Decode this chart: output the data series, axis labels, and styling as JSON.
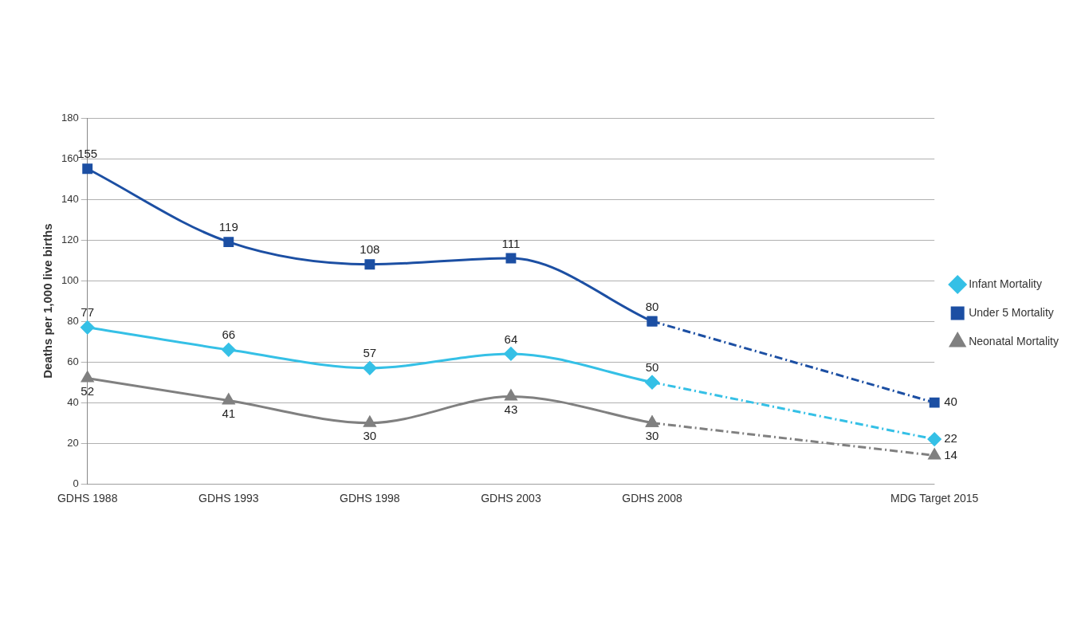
{
  "chart_data": {
    "type": "line",
    "ylabel": "Deaths per 1,000 live births",
    "categories": [
      "GDHS 1988",
      "GDHS 1993",
      "GDHS 1998",
      "GDHS 2003",
      "GDHS 2008",
      null,
      "MDG Target 2015"
    ],
    "ylim": [
      0,
      180
    ],
    "yticks": [
      0,
      20,
      40,
      60,
      80,
      100,
      120,
      140,
      160,
      180
    ],
    "grid": "y",
    "legend": "right",
    "series": [
      {
        "name": "Infant Mortality",
        "color": "#35c0e6",
        "marker": "diamond",
        "line_style": "solid",
        "values": [
          77,
          66,
          57,
          64,
          50,
          null,
          null
        ],
        "value_labels": [
          "77",
          "66",
          "57",
          "64",
          "50",
          null,
          null
        ]
      },
      {
        "name": "Under 5 Mortality",
        "color": "#1c4fa3",
        "marker": "square",
        "line_style": "solid",
        "values": [
          155,
          119,
          108,
          111,
          80,
          null,
          null
        ],
        "value_labels": [
          "155",
          "119",
          "108",
          "111",
          "80",
          null,
          null
        ]
      },
      {
        "name": "Neonatal Mortality",
        "color": "#808080",
        "marker": "triangle",
        "line_style": "solid",
        "values": [
          52,
          41,
          30,
          43,
          30,
          null,
          null
        ],
        "value_labels": [
          "52",
          "41",
          "30",
          "43",
          "30",
          null,
          null
        ]
      },
      {
        "color": "#35c0e6",
        "marker": "diamond",
        "line_style": "dashed",
        "values": [
          null,
          null,
          null,
          null,
          50,
          null,
          22
        ],
        "value_labels": [
          null,
          null,
          null,
          null,
          null,
          null,
          "22"
        ]
      },
      {
        "color": "#1c4fa3",
        "marker": "square",
        "line_style": "dashed",
        "values": [
          null,
          null,
          null,
          null,
          80,
          null,
          40
        ],
        "value_labels": [
          null,
          null,
          null,
          null,
          null,
          null,
          "40"
        ]
      },
      {
        "color": "#808080",
        "marker": "triangle",
        "line_style": "dashed",
        "values": [
          null,
          null,
          null,
          null,
          30,
          null,
          14
        ],
        "value_labels": [
          null,
          null,
          null,
          null,
          null,
          null,
          "14"
        ]
      }
    ]
  }
}
